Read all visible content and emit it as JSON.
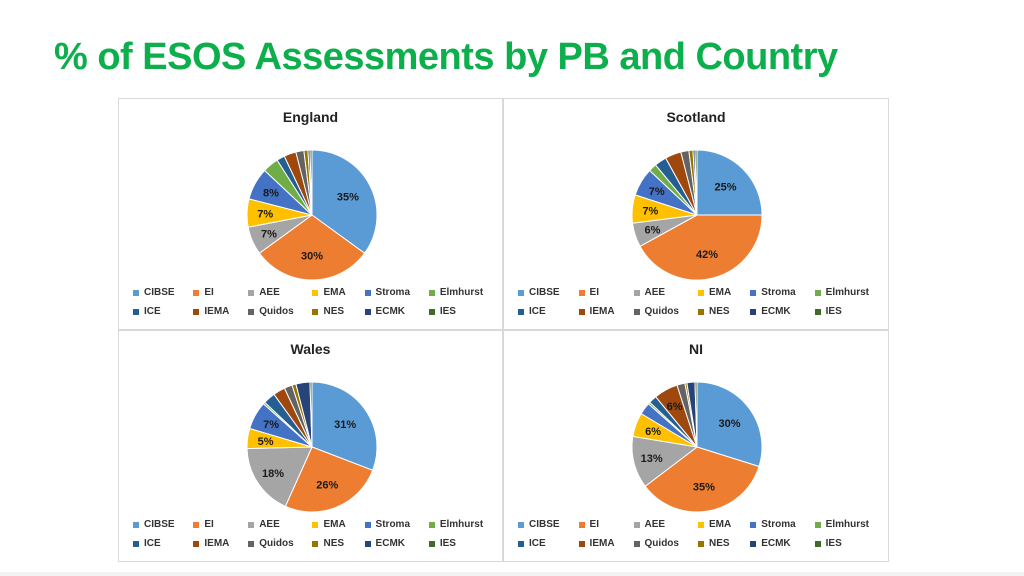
{
  "page": {
    "title": "% of ESOS Assessments by PB and Country"
  },
  "legend": [
    "CIBSE",
    "EI",
    "AEE",
    "EMA",
    "Stroma",
    "Elmhurst",
    "ICE",
    "IEMA",
    "Quidos",
    "NES",
    "ECMK",
    "IES"
  ],
  "colors": [
    "#5b9bd5",
    "#ed7d31",
    "#a5a5a5",
    "#ffc000",
    "#4472c4",
    "#70ad47",
    "#255e91",
    "#9e480e",
    "#636363",
    "#997300",
    "#264478",
    "#43682b"
  ],
  "chart_data": [
    {
      "type": "pie",
      "title": "England",
      "categories": [
        "CIBSE",
        "EI",
        "AEE",
        "EMA",
        "Stroma",
        "Elmhurst",
        "ICE",
        "IEMA",
        "Quidos",
        "NES",
        "ECMK",
        "IES"
      ],
      "values": [
        35,
        30,
        7,
        7,
        8,
        4,
        2,
        3,
        2,
        1,
        0.5,
        0.5
      ],
      "labels": [
        "35%",
        "30%",
        "7%",
        "7%",
        "8%",
        "",
        "",
        "",
        "",
        "",
        "",
        ""
      ]
    },
    {
      "type": "pie",
      "title": "Scotland",
      "categories": [
        "CIBSE",
        "EI",
        "AEE",
        "EMA",
        "Stroma",
        "Elmhurst",
        "ICE",
        "IEMA",
        "Quidos",
        "NES",
        "ECMK",
        "IES"
      ],
      "values": [
        25,
        42,
        6,
        7,
        7,
        2,
        3,
        4,
        2,
        1,
        0.5,
        0.5
      ],
      "labels": [
        "25%",
        "42%",
        "6%",
        "7%",
        "7%",
        "",
        "",
        "",
        "",
        "",
        "",
        ""
      ]
    },
    {
      "type": "pie",
      "title": "Wales",
      "categories": [
        "CIBSE",
        "EI",
        "AEE",
        "EMA",
        "Stroma",
        "Elmhurst",
        "ICE",
        "IEMA",
        "Quidos",
        "NES",
        "ECMK",
        "IES"
      ],
      "values": [
        31,
        26,
        18,
        5,
        7,
        0.5,
        3,
        3,
        2,
        1,
        3.5,
        0.5
      ],
      "labels": [
        "31%",
        "26%",
        "18%",
        "5%",
        "7%",
        "",
        "",
        "",
        "",
        "",
        "",
        ""
      ]
    },
    {
      "type": "pie",
      "title": "NI",
      "categories": [
        "CIBSE",
        "EI",
        "AEE",
        "EMA",
        "Stroma",
        "Elmhurst",
        "ICE",
        "IEMA",
        "Quidos",
        "NES",
        "ECMK",
        "IES"
      ],
      "values": [
        30,
        35,
        13,
        6,
        3,
        0.5,
        2,
        6,
        2,
        0.5,
        2,
        0.5
      ],
      "labels": [
        "30%",
        "35%",
        "13%",
        "6%",
        "",
        "",
        "",
        "6%",
        "",
        "",
        "",
        ""
      ]
    }
  ]
}
